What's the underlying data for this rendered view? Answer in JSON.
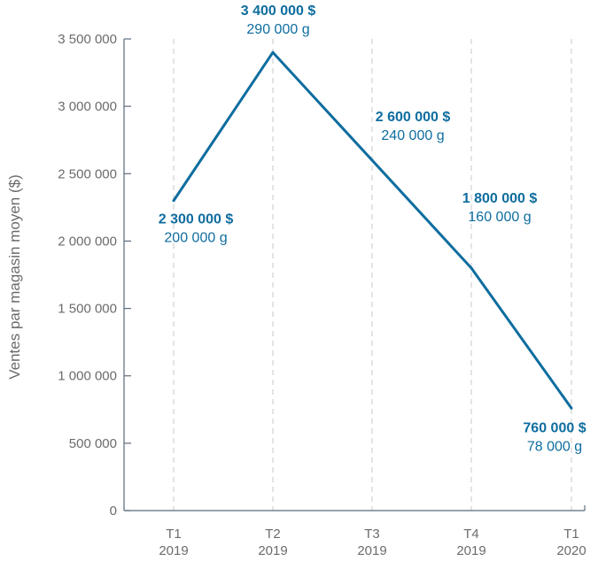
{
  "colors": {
    "line": "#0e6d9f",
    "axis": "#5b6b7b",
    "grid": "#c8c8c8",
    "text": "#6b6b6b"
  },
  "chart_data": {
    "type": "line",
    "title": "",
    "ylabel": "Ventes par magasin moyen ($)",
    "xlabel": "",
    "ylim": [
      0,
      3500000
    ],
    "y_ticks": [
      0,
      500000,
      1000000,
      1500000,
      2000000,
      2500000,
      3000000,
      3500000
    ],
    "y_tick_labels": [
      "0",
      "500 000",
      "1 000 000",
      "1 500 000",
      "2 000 000",
      "2 500 000",
      "3 000 000",
      "3 500 000"
    ],
    "categories": [
      "T1 2019",
      "T2 2019",
      "T3 2019",
      "T4 2019",
      "T1 2020"
    ],
    "category_lines": [
      [
        "T1",
        "2019"
      ],
      [
        "T2",
        "2019"
      ],
      [
        "T3",
        "2019"
      ],
      [
        "T4",
        "2019"
      ],
      [
        "T1",
        "2020"
      ]
    ],
    "vertical_grid": true,
    "horizontal_grid": false,
    "series": [
      {
        "values": [
          2300000,
          3400000,
          2600000,
          1800000,
          760000
        ]
      }
    ],
    "data_labels": [
      {
        "value_label": "2 300 000 $",
        "grams_label": "200 000 g"
      },
      {
        "value_label": "3 400 000 $",
        "grams_label": "290 000 g"
      },
      {
        "value_label": "2 600 000 $",
        "grams_label": "240 000 g"
      },
      {
        "value_label": "1 800 000 $",
        "grams_label": "160 000 g"
      },
      {
        "value_label": "760 000 $",
        "grams_label": "78 000 g"
      }
    ]
  }
}
